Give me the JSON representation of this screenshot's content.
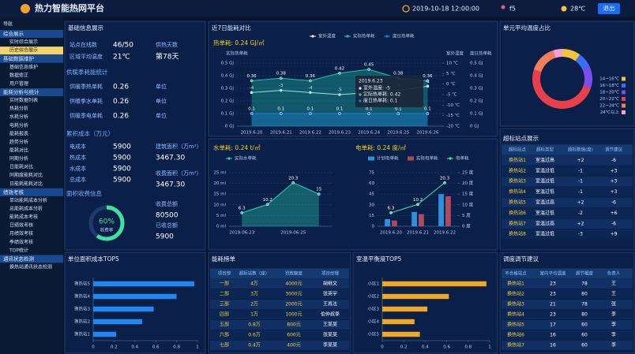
{
  "header": {
    "title": "热力智能热网平台",
    "datetime": "2019-10-18 12:00:00",
    "user": "f5",
    "weather": "28℃",
    "logout": "退出"
  },
  "sidebar": {
    "title": "导航",
    "active": [
      0,
      1
    ],
    "groups": [
      {
        "name": "综合展示",
        "items": [
          "实时综合展示",
          "历史综合展示"
        ]
      },
      {
        "name": "基础数据维护",
        "items": [
          "基础信息维护",
          "数据修正",
          "用户管理"
        ]
      },
      {
        "name": "能耗分析与统计",
        "items": [
          "实时数据列表",
          "热耗分析",
          "水耗分析",
          "电耗分析",
          "能耗报表",
          "趋势分析",
          "能耗对比",
          "同期分析",
          "日能耗对比",
          "同期度能耗对比",
          "日能耗能耗对比"
        ]
      },
      {
        "name": "绩效考核",
        "items": [
          "单站能耗成本分析",
          "总能耗成本分析",
          "能耗成本考核",
          "日绩效考核",
          "月绩效考核",
          "季绩效考核",
          "TOP统计"
        ]
      },
      {
        "name": "通讯状态检测",
        "items": [
          "换热站通讯状态检测"
        ]
      }
    ]
  },
  "info": {
    "title": "基础信息展示",
    "stats": [
      {
        "label": "站点在线数",
        "value": "46/50"
      },
      {
        "label": "区域平均温度",
        "value": "21℃"
      }
    ],
    "days": {
      "label": "供热天数",
      "value": "第78天"
    },
    "season_title": "供暖季耗能统计",
    "season": [
      {
        "label": "供暖季热单耗",
        "value": "0.26",
        "unit": "单位"
      },
      {
        "label": "供暖季水单耗",
        "value": "0.26",
        "unit": "单位"
      },
      {
        "label": "供暖季电单耗",
        "value": "0.26",
        "unit": "单位"
      }
    ],
    "cost_title": "累积成本（万元）",
    "costs": [
      {
        "label": "电成本",
        "value": "5900"
      },
      {
        "label": "热成本",
        "value": "5900"
      },
      {
        "label": "水成本",
        "value": "5900"
      },
      {
        "label": "总成本",
        "value": "5900"
      }
    ],
    "areas": [
      {
        "label": "建筑面积（万m²）",
        "value": "3467.30"
      },
      {
        "label": "收费面积（万m²）",
        "value": "3467.30"
      }
    ],
    "charge_title": "面积收费信息",
    "charges": [
      {
        "label": "收费总额",
        "value": "80500"
      },
      {
        "label": "已收总额",
        "value": "5900"
      }
    ]
  },
  "tables": [
    {
      "title": "超标站点展示",
      "columns": [
        "超标站点",
        "超标类型",
        "超标数值(度)",
        "调节建议"
      ],
      "highlight_columns": [
        0
      ],
      "rows": [
        [
          "换热站1",
          "室温过高",
          "+2",
          "-6"
        ],
        [
          "换热站2",
          "室温过低",
          "-1",
          "+3"
        ],
        [
          "换热站3",
          "室温过低",
          "-1",
          "+3"
        ],
        [
          "换热站4",
          "室温过低",
          "-1",
          "+3"
        ],
        [
          "换热站5",
          "室温过高",
          "+2",
          "-6"
        ],
        [
          "换热站6",
          "室温过低",
          "-2",
          "+6"
        ],
        [
          "换热站7",
          "室温过高",
          "+2",
          "-6"
        ],
        [
          "换热站8",
          "室温过低",
          "-3",
          "+9"
        ]
      ]
    },
    {
      "title": "能耗榜单",
      "columns": [
        "项目部",
        "超标站数（座）",
        "罚款额度",
        "项目经理"
      ],
      "highlight_columns": [
        0,
        1,
        2
      ],
      "rows": [
        [
          "一部",
          "4万",
          "4000元",
          "胡继文"
        ],
        [
          "二部",
          "3万",
          "3000元",
          "张英宇"
        ],
        [
          "三部",
          "2万",
          "2000元",
          "王再法"
        ],
        [
          "四部",
          "1万",
          "1000元",
          "伯仲叔季"
        ],
        [
          "五部",
          "0.8万",
          "800元",
          "王某某"
        ],
        [
          "六部",
          "0.6万",
          "600元",
          "张某某"
        ],
        [
          "七部",
          "0.4万",
          "400元",
          "李某某"
        ]
      ]
    },
    {
      "title": "调度调节建议",
      "columns": [
        "不合格站点",
        "室内平均温度",
        "超节幅度",
        "负责人"
      ],
      "highlight_columns": [
        0
      ],
      "rows": [
        [
          "换热站1",
          "23",
          "78",
          "王"
        ],
        [
          "换热站2",
          "23",
          "80",
          "王"
        ],
        [
          "换热站3",
          "21",
          "78",
          "张"
        ],
        [
          "换热站4",
          "23",
          "80",
          "李"
        ],
        [
          "换热站5",
          "17",
          "60",
          "李"
        ],
        [
          "换热站6",
          "16",
          "60",
          "李"
        ],
        [
          "换热站7",
          "16",
          "60",
          "李"
        ]
      ]
    }
  ],
  "chart_data": [
    {
      "type": "line",
      "title": "近7日能耗对比",
      "subtitle": "热单耗: 0.24 GJ/㎡",
      "y_label": "实际热单耗",
      "y2_label": "室外温度",
      "y3_label": "度日热单耗",
      "categories": [
        "2019.6.20",
        "2019.6.21",
        "2019.6.22",
        "2019.6.23",
        "2019.6.24",
        "2019.6.25",
        "2019.6.26"
      ],
      "series": [
        {
          "name": "室外温度",
          "color": "#e8eef8",
          "values": [
            -4,
            -3,
            -4,
            -5,
            -4,
            -3,
            -1
          ],
          "axis": "y2",
          "labels": true
        },
        {
          "name": "实际热单耗",
          "color": "#22c3b0",
          "values": [
            0.36,
            0.38,
            0.36,
            0.42,
            0.45,
            0.38,
            0.36
          ],
          "area": true,
          "labels": true
        },
        {
          "name": "度日热单耗",
          "color": "#1e7be0",
          "values": [
            0.1,
            0.1,
            0.1,
            0.1,
            0.1,
            0.1,
            0.1
          ],
          "axis": "y3",
          "area": true,
          "labels": true
        }
      ],
      "ylim": [
        0,
        0.5
      ],
      "yticks": [
        {
          "value": 0,
          "label": "0 GJ"
        },
        {
          "value": 0.1,
          "label": "0.1 GJ"
        },
        {
          "value": 0.2,
          "label": "0.2 GJ"
        },
        {
          "value": 0.3,
          "label": "0.3 GJ"
        },
        {
          "value": 0.4,
          "label": "0.4 GJ"
        },
        {
          "value": 0.5,
          "label": "0.5 GJ"
        }
      ],
      "y2lim": [
        -20,
        10
      ],
      "y2ticks": [
        {
          "value": -20,
          "label": "-20 ℃"
        },
        {
          "value": -15,
          "label": "-15 ℃"
        },
        {
          "value": -10,
          "label": "-10 ℃"
        },
        {
          "value": -5,
          "label": "-5 ℃"
        },
        {
          "value": 0,
          "label": "0 ℃"
        },
        {
          "value": 5,
          "label": "5 ℃"
        },
        {
          "value": 10,
          "label": "10 ℃"
        }
      ],
      "y3lim": [
        0,
        0.5
      ],
      "y3ticks": [
        {
          "value": 0,
          "label": "0 GJ"
        },
        {
          "value": 0.1,
          "label": "0.1 GJ"
        },
        {
          "value": 0.2,
          "label": "0.2 GJ"
        },
        {
          "value": 0.3,
          "label": "0.3 GJ"
        },
        {
          "value": 0.4,
          "label": "0.4 GJ"
        },
        {
          "value": 0.5,
          "label": "0.5 GJ"
        }
      ],
      "grid": true,
      "tooltip": {
        "title": "2019.6.23",
        "items": [
          "室外温度: -5",
          "实际热单耗: 0.42",
          "度日热单耗: 0.1"
        ]
      }
    },
    {
      "type": "line",
      "subtitle": "水单耗: 0.24 t/㎡",
      "categories": [
        "2019-06-23",
        null,
        "2019-06-25",
        null
      ],
      "series": [
        {
          "name": "实际水单耗",
          "color": "#2ad4b8",
          "values": [
            6.3,
            10.2,
            20.3,
            15
          ],
          "area": true,
          "labels": true
        }
      ],
      "ylim": [
        0,
        25
      ],
      "yticks": [
        {
          "value": 0,
          "label": "0 ml"
        },
        {
          "value": 5,
          "label": "5 ml"
        },
        {
          "value": 10,
          "label": "10 ml"
        },
        {
          "value": 15,
          "label": "15 ml"
        },
        {
          "value": 20,
          "label": "20 ml"
        },
        {
          "value": 25,
          "label": "25 ml"
        }
      ],
      "grid": true
    },
    {
      "type": "bar",
      "subtitle": "电单耗: 0.24 度/㎡",
      "categories": [
        "2019.6.20",
        "2019.6.21",
        "2019.6.22"
      ],
      "series": [
        {
          "name": "计划电单耗",
          "color": "#2e8fdc",
          "values": [
            10,
            20,
            45
          ]
        },
        {
          "name": "实际电单耗",
          "color": "#b0485e",
          "values": [
            8,
            17,
            42
          ]
        },
        {
          "name": "电单耗",
          "type": "line",
          "color": "#4de0b0",
          "values": [
            6.3,
            10.2,
            20.3
          ],
          "axis": "y2",
          "labels": true
        }
      ],
      "ylim": [
        0,
        75
      ],
      "yticks": [
        0,
        15,
        30,
        45,
        60,
        75
      ],
      "y2lim": [
        0,
        25
      ],
      "y2ticks": [
        {
          "value": 0,
          "label": "0 度"
        },
        {
          "value": 5,
          "label": "5 度"
        },
        {
          "value": 10,
          "label": "10 度"
        },
        {
          "value": 15,
          "label": "15 度"
        },
        {
          "value": 20,
          "label": "20 度"
        },
        {
          "value": 25,
          "label": "25 度"
        }
      ],
      "grid": true
    },
    {
      "type": "pie",
      "title": "单元平均温度占比",
      "categories": [
        "14~16℃",
        "16~18℃",
        "18~20℃",
        "20~22℃",
        "22~24℃",
        "24℃以上"
      ],
      "values": [
        10,
        8,
        12,
        50,
        15,
        5
      ],
      "colors": [
        "#f5c33b",
        "#3b6df5",
        "#7b4df0",
        "#e8404a",
        "#f57c5b",
        "#f5a0d0"
      ]
    },
    {
      "type": "bar",
      "orientation": "horizontal",
      "title": "单位面积成本TOP5",
      "categories": [
        "换热站5",
        "换热站4",
        "换热站3",
        "换热站2",
        "换热站1"
      ],
      "values": [
        0.97,
        0.8,
        0.58,
        0.47,
        0.22
      ],
      "color": "#1e88f0",
      "xlim": [
        0,
        1
      ],
      "xticks": [
        0,
        0.2,
        0.4,
        0.6,
        0.8,
        1
      ]
    },
    {
      "type": "bar",
      "orientation": "horizontal",
      "title": "室温平衡度TOP5",
      "categories": [
        "小区1",
        "小区2",
        "小区3",
        "小区4",
        "小区5"
      ],
      "values": [
        0.97,
        0.62,
        0.42,
        0.3,
        0.35
      ],
      "color": "#f2a626",
      "xlim": [
        0,
        1
      ],
      "xticks": [
        0,
        0.2,
        0.4,
        0.6,
        0.8,
        1
      ]
    },
    {
      "type": "gauge",
      "value": 60,
      "value_label": "60%",
      "label": "收费率",
      "ylim": [
        0,
        100
      ],
      "color": "#3fe0a0"
    }
  ]
}
